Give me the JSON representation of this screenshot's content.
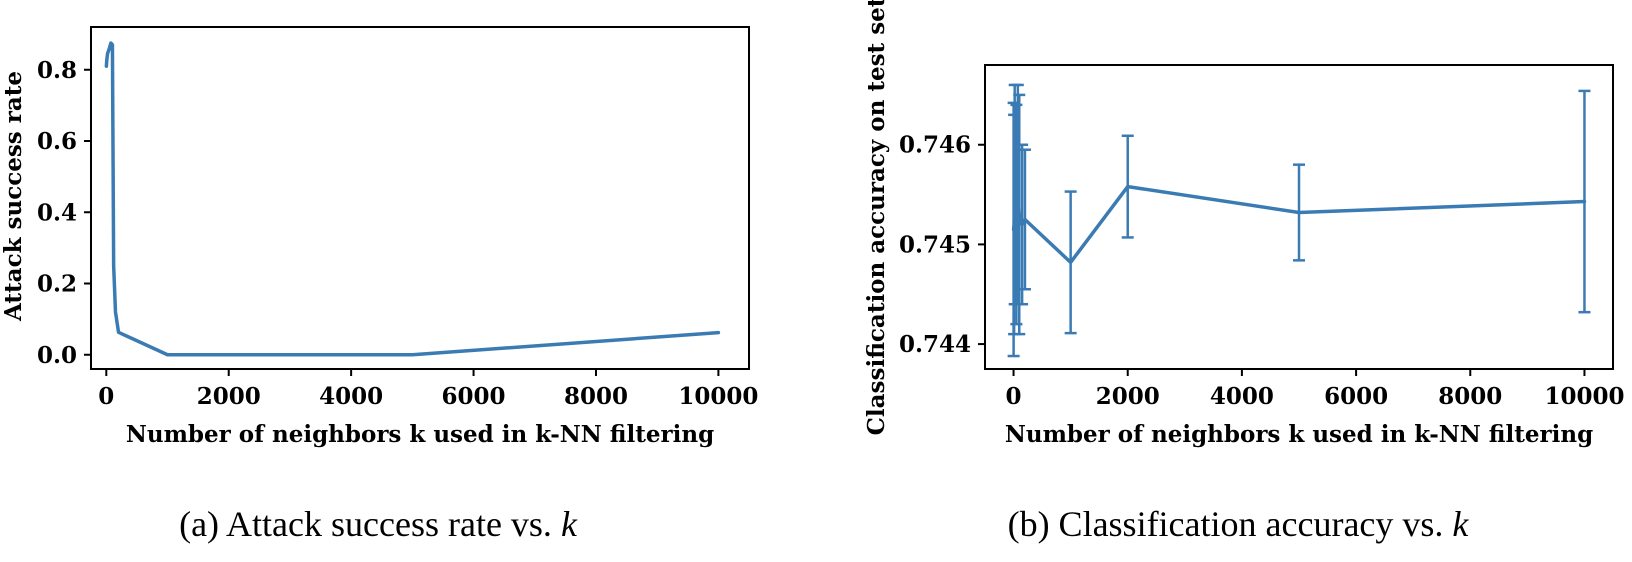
{
  "chart_data": [
    {
      "type": "line",
      "xlabel": "Number of neighbors k used in k-NN filtering",
      "ylabel": "Attack success rate",
      "caption_prefix": "(a) Attack success rate vs. ",
      "caption_var": "k",
      "xlim": [
        -250,
        10500
      ],
      "ylim": [
        -0.04,
        0.92
      ],
      "xticks": [
        0,
        2000,
        4000,
        6000,
        8000,
        10000
      ],
      "yticks": [
        0.0,
        0.2,
        0.4,
        0.6,
        0.8
      ],
      "ytick_labels": [
        "0.0",
        "0.2",
        "0.4",
        "0.6",
        "0.8"
      ],
      "color": "#3b7bb4",
      "series": [
        {
          "x": [
            1,
            5,
            10,
            20,
            50,
            75,
            100,
            120,
            150,
            200,
            1000,
            2000,
            5000,
            10000
          ],
          "y": [
            0.81,
            0.82,
            0.83,
            0.845,
            0.86,
            0.875,
            0.87,
            0.25,
            0.12,
            0.063,
            0.0,
            0.0,
            0.0,
            0.062
          ]
        }
      ]
    },
    {
      "type": "line",
      "error_bars": true,
      "xlabel": "Number of neighbors k used in k-NN filtering",
      "ylabel": "Classification accuracy on test set",
      "caption_prefix": "(b) Classification accuracy vs. ",
      "caption_var": "k",
      "xlim": [
        -500,
        10500
      ],
      "ylim": [
        0.74375,
        0.7468
      ],
      "xticks": [
        0,
        2000,
        4000,
        6000,
        8000,
        10000
      ],
      "yticks": [
        0.744,
        0.745,
        0.746
      ],
      "ytick_labels": [
        "0.744",
        "0.745",
        "0.746"
      ],
      "color": "#3b7bb4",
      "series": [
        {
          "x": [
            1,
            10,
            20,
            50,
            75,
            100,
            150,
            200,
            1000,
            2000,
            5000,
            10000
          ],
          "y": [
            0.74515,
            0.7452,
            0.7455,
            0.7453,
            0.7455,
            0.7453,
            0.7452,
            0.74525,
            0.74482,
            0.74558,
            0.74532,
            0.74543
          ],
          "err": [
            0.00127,
            0.0011,
            0.0011,
            0.0011,
            0.0011,
            0.0012,
            0.0008,
            0.0007,
            0.00071,
            0.00051,
            0.00048,
            0.00111
          ]
        }
      ]
    }
  ]
}
